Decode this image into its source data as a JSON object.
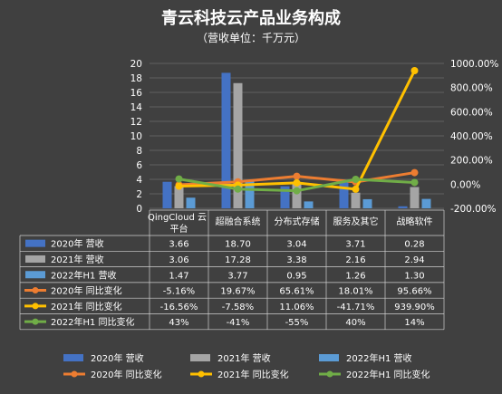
{
  "chart_data": {
    "type": "bar",
    "title": "青云科技云产品业务构成",
    "subtitle": "（营收单位：千万元）",
    "categories": [
      "QingCloud 云平台",
      "超融合系统",
      "分布式存储",
      "服务及其它",
      "战略软件"
    ],
    "y_left": {
      "min": 0,
      "max": 20,
      "step": 2,
      "ticks": [
        "0",
        "2",
        "4",
        "6",
        "8",
        "10",
        "12",
        "14",
        "16",
        "18",
        "20"
      ]
    },
    "y_right": {
      "min": -200,
      "max": 1000,
      "step": 200,
      "ticks": [
        "-200.00%",
        "0.00%",
        "200.00%",
        "400.00%",
        "600.00%",
        "800.00%",
        "1000.00%"
      ]
    },
    "grid": true,
    "legend_position": "bottom",
    "bar_series": [
      {
        "name": "2020年 营收",
        "color": "#4472C4",
        "values": [
          3.66,
          18.7,
          3.04,
          3.71,
          0.28
        ],
        "labels": [
          "3.66",
          "18.70",
          "3.04",
          "3.71",
          "0.28"
        ]
      },
      {
        "name": "2021年 营收",
        "color": "#A5A5A5",
        "values": [
          3.06,
          17.28,
          3.38,
          2.16,
          2.94
        ],
        "labels": [
          "3.06",
          "17.28",
          "3.38",
          "2.16",
          "2.94"
        ]
      },
      {
        "name": "2022年H1 营收",
        "color": "#5B9BD5",
        "values": [
          1.47,
          3.77,
          0.95,
          1.26,
          1.3
        ],
        "labels": [
          "1.47",
          "3.77",
          "0.95",
          "1.26",
          "1.30"
        ]
      }
    ],
    "line_series": [
      {
        "name": "2020年 同比变化",
        "color": "#ED7D31",
        "values": [
          -5.16,
          19.67,
          65.61,
          18.01,
          95.66
        ],
        "labels": [
          "-5.16%",
          "19.67%",
          "65.61%",
          "18.01%",
          "95.66%"
        ]
      },
      {
        "name": "2021年 同比变化",
        "color": "#FFC000",
        "values": [
          -16.56,
          -7.58,
          11.06,
          -41.71,
          939.9
        ],
        "labels": [
          "-16.56%",
          "-7.58%",
          "11.06%",
          "-41.71%",
          "939.90%"
        ]
      },
      {
        "name": "2022年H1 同比变化",
        "color": "#70AD47",
        "values": [
          43,
          -41,
          -55,
          40,
          14
        ],
        "labels": [
          "43%",
          "-41%",
          "-55%",
          "40%",
          "14%"
        ]
      }
    ],
    "legend": [
      "2020年 营收",
      "2021年 营收",
      "2022年H1 营收",
      "2020年 同比变化",
      "2021年 同比变化",
      "2022年H1 同比变化"
    ]
  },
  "colors": {
    "background": "#404040",
    "grid": "#6a6a6a",
    "table_line": "#d0d0d0"
  }
}
